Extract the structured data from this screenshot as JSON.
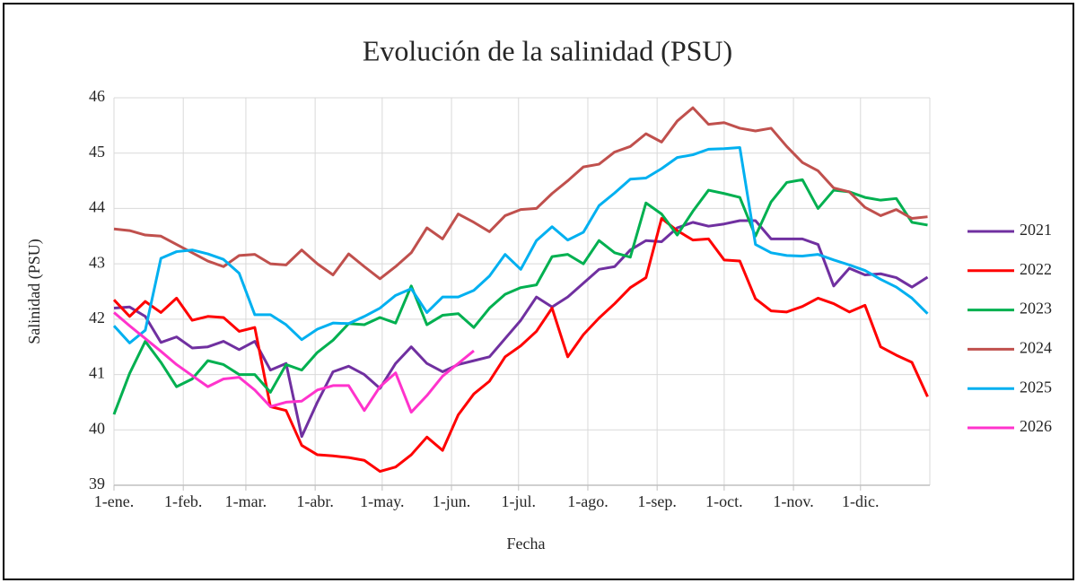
{
  "chart_data": {
    "type": "line",
    "title": "Evolución de la salinidad (PSU)",
    "x_label": "Fecha",
    "y_label": "Salinidad (PSU)",
    "x": [
      1,
      8,
      15,
      22,
      29,
      36,
      43,
      50,
      57,
      64,
      71,
      78,
      85,
      92,
      99,
      106,
      113,
      120,
      127,
      134,
      141,
      148,
      155,
      162,
      169,
      176,
      183,
      190,
      197,
      204,
      211,
      218,
      225,
      232,
      239,
      246,
      253,
      260,
      267,
      274,
      281,
      288,
      295,
      302,
      309,
      316,
      323,
      330,
      337,
      344,
      351,
      358,
      365
    ],
    "xlim": [
      1,
      366
    ],
    "xticks": [
      {
        "value": 1,
        "label": "1-ene."
      },
      {
        "value": 32,
        "label": "1-feb."
      },
      {
        "value": 60,
        "label": "1-mar."
      },
      {
        "value": 91,
        "label": "1-abr."
      },
      {
        "value": 121,
        "label": "1-may."
      },
      {
        "value": 152,
        "label": "1-jun."
      },
      {
        "value": 182,
        "label": "1-jul."
      },
      {
        "value": 213,
        "label": "1-ago."
      },
      {
        "value": 244,
        "label": "1-sep."
      },
      {
        "value": 274,
        "label": "1-oct."
      },
      {
        "value": 305,
        "label": "1-nov."
      },
      {
        "value": 335,
        "label": "1-dic."
      }
    ],
    "ylim": [
      39,
      46
    ],
    "yticks": [
      39,
      40,
      41,
      42,
      43,
      44,
      45,
      46
    ],
    "grid": true,
    "legend": "right",
    "series": [
      {
        "name": "2021",
        "color": "#7030a0",
        "values": [
          42.2,
          42.22,
          42.05,
          41.58,
          41.68,
          41.48,
          41.5,
          41.6,
          41.45,
          41.6,
          41.08,
          41.2,
          39.88,
          40.5,
          41.05,
          41.15,
          41.0,
          40.75,
          41.2,
          41.5,
          41.2,
          41.05,
          41.18,
          41.25,
          41.32,
          41.65,
          41.98,
          42.4,
          42.22,
          42.4,
          42.65,
          42.9,
          42.95,
          43.25,
          43.42,
          43.4,
          43.65,
          43.75,
          43.68,
          43.72,
          43.78,
          43.78,
          43.45,
          43.45,
          43.45,
          43.35,
          42.6,
          42.92,
          42.8,
          42.82,
          42.75,
          42.58,
          42.76
        ]
      },
      {
        "name": "2022",
        "color": "#ff0000",
        "values": [
          42.35,
          42.05,
          42.32,
          42.12,
          42.38,
          41.98,
          42.05,
          42.03,
          41.78,
          41.85,
          40.42,
          40.35,
          39.72,
          39.55,
          39.53,
          39.5,
          39.45,
          39.25,
          39.33,
          39.55,
          39.87,
          39.63,
          40.27,
          40.65,
          40.88,
          41.32,
          41.52,
          41.78,
          42.2,
          41.32,
          41.72,
          42.02,
          42.28,
          42.57,
          42.75,
          43.82,
          43.6,
          43.43,
          43.45,
          43.07,
          43.05,
          42.37,
          42.15,
          42.13,
          42.23,
          42.38,
          42.28,
          42.13,
          42.25,
          41.5,
          41.35,
          41.22,
          40.6
        ]
      },
      {
        "name": "2023",
        "color": "#00b050",
        "values": [
          40.28,
          41.02,
          41.6,
          41.22,
          40.78,
          40.92,
          41.25,
          41.18,
          41.0,
          41.0,
          40.68,
          41.18,
          41.08,
          41.4,
          41.62,
          41.92,
          41.9,
          42.03,
          41.93,
          42.6,
          41.9,
          42.07,
          42.1,
          41.85,
          42.2,
          42.45,
          42.57,
          42.62,
          43.13,
          43.17,
          43.0,
          43.42,
          43.2,
          43.12,
          44.1,
          43.9,
          43.52,
          43.95,
          44.33,
          44.27,
          44.2,
          43.5,
          44.12,
          44.47,
          44.52,
          44.0,
          44.33,
          44.3,
          44.2,
          44.15,
          44.18,
          43.75,
          43.7
        ]
      },
      {
        "name": "2024",
        "color": "#c0504d",
        "values": [
          43.63,
          43.6,
          43.52,
          43.5,
          43.35,
          43.2,
          43.05,
          42.95,
          43.15,
          43.17,
          43.0,
          42.98,
          43.25,
          43.0,
          42.8,
          43.18,
          42.95,
          42.73,
          42.95,
          43.2,
          43.65,
          43.45,
          43.9,
          43.75,
          43.58,
          43.87,
          43.98,
          44.0,
          44.27,
          44.5,
          44.75,
          44.8,
          45.02,
          45.12,
          45.35,
          45.2,
          45.58,
          45.82,
          45.52,
          45.55,
          45.45,
          45.4,
          45.45,
          45.12,
          44.83,
          44.68,
          44.37,
          44.3,
          44.02,
          43.87,
          43.98,
          43.82,
          43.85
        ]
      },
      {
        "name": "2025",
        "color": "#00b0f0",
        "values": [
          41.88,
          41.57,
          41.8,
          43.1,
          43.22,
          43.25,
          43.18,
          43.08,
          42.83,
          42.08,
          42.08,
          41.9,
          41.63,
          41.82,
          41.93,
          41.92,
          42.05,
          42.2,
          42.43,
          42.55,
          42.12,
          42.4,
          42.4,
          42.52,
          42.78,
          43.17,
          42.9,
          43.42,
          43.67,
          43.43,
          43.57,
          44.05,
          44.28,
          44.53,
          44.55,
          44.72,
          44.92,
          44.97,
          45.07,
          45.08,
          45.1,
          43.35,
          43.2,
          43.15,
          43.14,
          43.17,
          43.07,
          42.98,
          42.88,
          42.72,
          42.58,
          42.38,
          42.1
        ]
      },
      {
        "name": "2026",
        "color": "#ff33cc",
        "values": [
          42.12,
          41.88,
          41.65,
          41.42,
          41.18,
          40.98,
          40.78,
          40.92,
          40.95,
          40.72,
          40.42,
          40.5,
          40.52,
          40.72,
          40.8,
          40.8,
          40.35,
          40.78,
          41.03,
          40.32,
          40.62,
          40.97,
          41.2,
          41.43,
          null,
          null,
          null,
          null,
          null,
          null,
          null,
          null,
          null,
          null,
          null,
          null,
          null,
          null,
          null,
          null,
          null,
          null,
          null,
          null,
          null,
          null,
          null,
          null,
          null,
          null,
          null,
          null,
          null
        ]
      }
    ]
  }
}
